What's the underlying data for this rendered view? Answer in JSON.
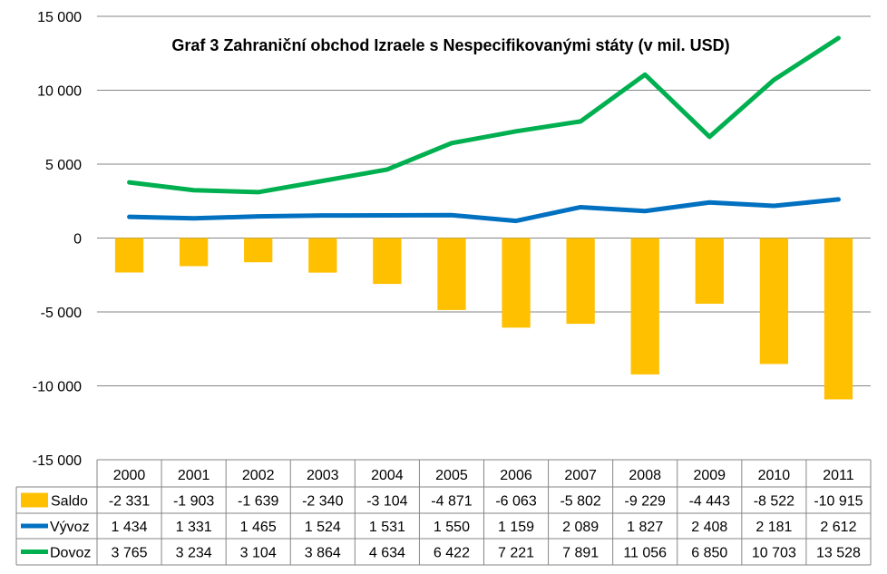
{
  "chart_data": {
    "type": "bar",
    "title": "Graf 3 Zahraniční obchod Izraele s Nespecifikovanými státy (v mil. USD)",
    "categories": [
      "2000",
      "2001",
      "2002",
      "2003",
      "2004",
      "2005",
      "2006",
      "2007",
      "2008",
      "2009",
      "2010",
      "2011"
    ],
    "ylim": [
      -15000,
      15000
    ],
    "ytick_values": [
      15000,
      10000,
      5000,
      0,
      -5000,
      -10000,
      -15000
    ],
    "ytick_labels": [
      "15 000",
      "10 000",
      "5 000",
      "0",
      "-5 000",
      "-10 000",
      "-15 000"
    ],
    "grid": true,
    "legend": "data-table",
    "series": [
      {
        "name": "Saldo",
        "kind": "bar",
        "color": "#FFC000",
        "values": [
          -2331,
          -1903,
          -1639,
          -2340,
          -3104,
          -4871,
          -6063,
          -5802,
          -9229,
          -4443,
          -8522,
          -10915
        ],
        "labels": [
          "-2 331",
          "-1 903",
          "-1 639",
          "-2 340",
          "-3 104",
          "-4 871",
          "-6 063",
          "-5 802",
          "-9 229",
          "-4 443",
          "-8 522",
          "-10 915"
        ]
      },
      {
        "name": "Vývoz",
        "kind": "line",
        "color": "#0070C0",
        "values": [
          1434,
          1331,
          1465,
          1524,
          1531,
          1550,
          1159,
          2089,
          1827,
          2408,
          2181,
          2612
        ],
        "labels": [
          "1 434",
          "1 331",
          "1 465",
          "1 524",
          "1 531",
          "1 550",
          "1 159",
          "2 089",
          "1 827",
          "2 408",
          "2 181",
          "2 612"
        ]
      },
      {
        "name": "Dovoz",
        "kind": "line",
        "color": "#00B050",
        "values": [
          3765,
          3234,
          3104,
          3864,
          4634,
          6422,
          7221,
          7891,
          11056,
          6850,
          10703,
          13528
        ],
        "labels": [
          "3 765",
          "3 234",
          "3 104",
          "3 864",
          "4 634",
          "6 422",
          "7 221",
          "7 891",
          "11 056",
          "6 850",
          "10 703",
          "13 528"
        ]
      }
    ]
  }
}
